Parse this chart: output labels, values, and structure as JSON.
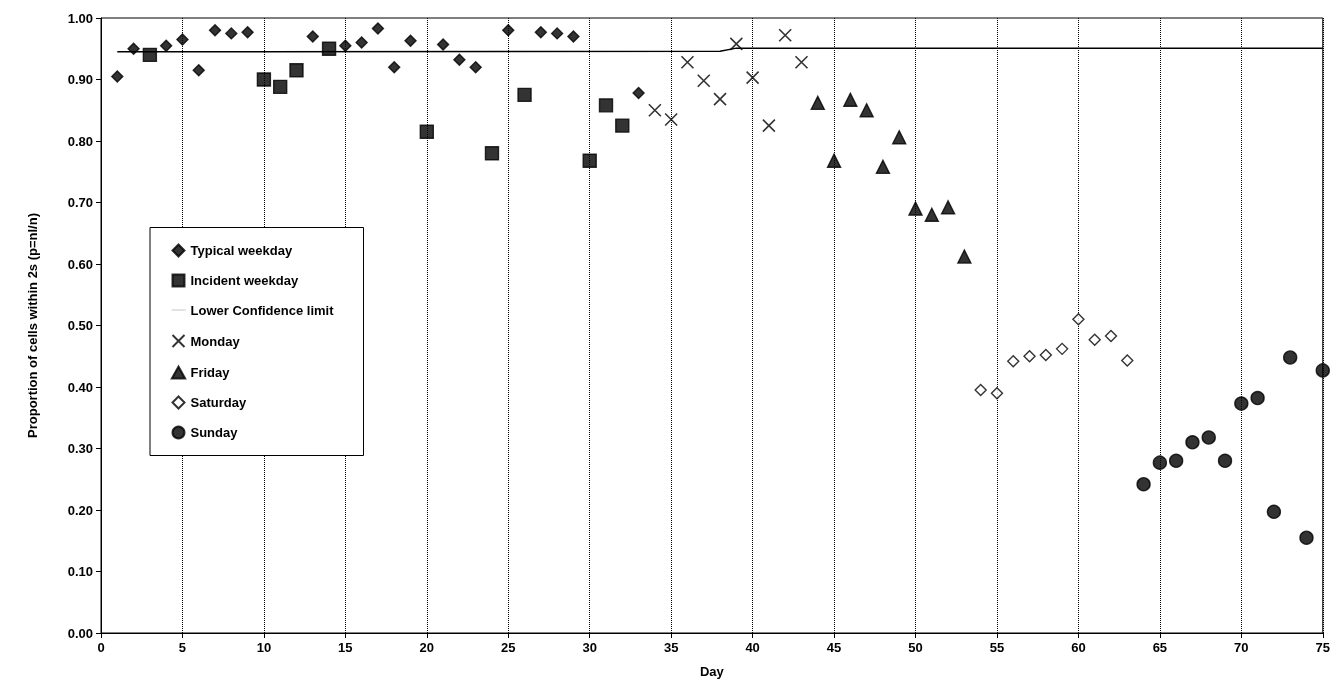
{
  "chart_data": {
    "type": "scatter",
    "xlabel": "Day",
    "ylabel": "Proportion of cells within 2s (p=nl/n)",
    "xlim": [
      0,
      75
    ],
    "xticks": [
      0,
      5,
      10,
      15,
      20,
      25,
      30,
      35,
      40,
      45,
      50,
      55,
      60,
      65,
      70,
      75
    ],
    "ylim": [
      0,
      1
    ],
    "yticks": [
      {
        "value": 0,
        "label": "0.00"
      },
      {
        "value": 0.1,
        "label": "0.10"
      },
      {
        "value": 0.2,
        "label": "0.20"
      },
      {
        "value": 0.3,
        "label": "0.30"
      },
      {
        "value": 0.4,
        "label": "0.40"
      },
      {
        "value": 0.5,
        "label": "0.50"
      },
      {
        "value": 0.6,
        "label": "0.60"
      },
      {
        "value": 0.7,
        "label": "0.70"
      },
      {
        "value": 0.8,
        "label": "0.80"
      },
      {
        "value": 0.9,
        "label": "0.90"
      },
      {
        "value": 1,
        "label": "1.00"
      }
    ],
    "grid": "x",
    "legend": "center left",
    "series": [
      {
        "name": "Typical weekday",
        "marker": "diamond",
        "color": "#000000",
        "x": [
          1,
          2,
          4,
          5,
          6,
          7,
          8,
          9,
          13,
          15,
          16,
          17,
          18,
          19,
          21,
          22,
          23,
          25,
          27,
          28,
          29,
          33
        ],
        "values": [
          0.905,
          0.95,
          0.955,
          0.965,
          0.915,
          0.98,
          0.975,
          0.977,
          0.97,
          0.955,
          0.96,
          0.983,
          0.92,
          0.963,
          0.957,
          0.932,
          0.92,
          0.98,
          0.977,
          0.975,
          0.97,
          0.878
        ]
      },
      {
        "name": "Incident weekday",
        "marker": "square",
        "color": "#000000",
        "x": [
          3,
          10,
          11,
          12,
          14,
          20,
          24,
          26,
          30,
          31,
          32
        ],
        "values": [
          0.94,
          0.9,
          0.888,
          0.915,
          0.95,
          0.815,
          0.78,
          0.875,
          0.768,
          0.858,
          0.825
        ]
      },
      {
        "name": "Lower Confidence limit",
        "type": "line",
        "marker": "none",
        "line_style": "solid",
        "color": "#000000",
        "x": [
          1,
          38,
          39,
          75
        ],
        "values": [
          0.945,
          0.946,
          0.951,
          0.951
        ]
      },
      {
        "name": "Monday",
        "marker": "cross",
        "color": "#000000",
        "x": [
          34,
          35,
          36,
          37,
          38,
          39,
          40,
          41,
          42,
          43
        ],
        "values": [
          0.85,
          0.835,
          0.928,
          0.898,
          0.868,
          0.958,
          0.903,
          0.825,
          0.972,
          0.928
        ]
      },
      {
        "name": "Friday",
        "marker": "triangle",
        "color": "#000000",
        "x": [
          44,
          45,
          46,
          47,
          48,
          49,
          50,
          51,
          52,
          53
        ],
        "values": [
          0.862,
          0.768,
          0.867,
          0.85,
          0.758,
          0.806,
          0.69,
          0.68,
          0.692,
          0.612
        ]
      },
      {
        "name": "Saturday",
        "marker": "diamond",
        "color": "#ffffff",
        "x": [
          54,
          55,
          56,
          57,
          58,
          59,
          60,
          61,
          62,
          63
        ],
        "values": [
          0.395,
          0.39,
          0.442,
          0.45,
          0.452,
          0.462,
          0.51,
          0.477,
          0.483,
          0.443
        ]
      },
      {
        "name": "Sunday",
        "marker": "circle",
        "color": "#000000",
        "x": [
          64,
          65,
          66,
          67,
          68,
          69,
          70,
          71,
          72,
          73,
          74,
          75
        ],
        "values": [
          0.242,
          0.277,
          0.28,
          0.31,
          0.318,
          0.28,
          0.373,
          0.382,
          0.197,
          0.448,
          0.155,
          0.427
        ]
      }
    ]
  }
}
